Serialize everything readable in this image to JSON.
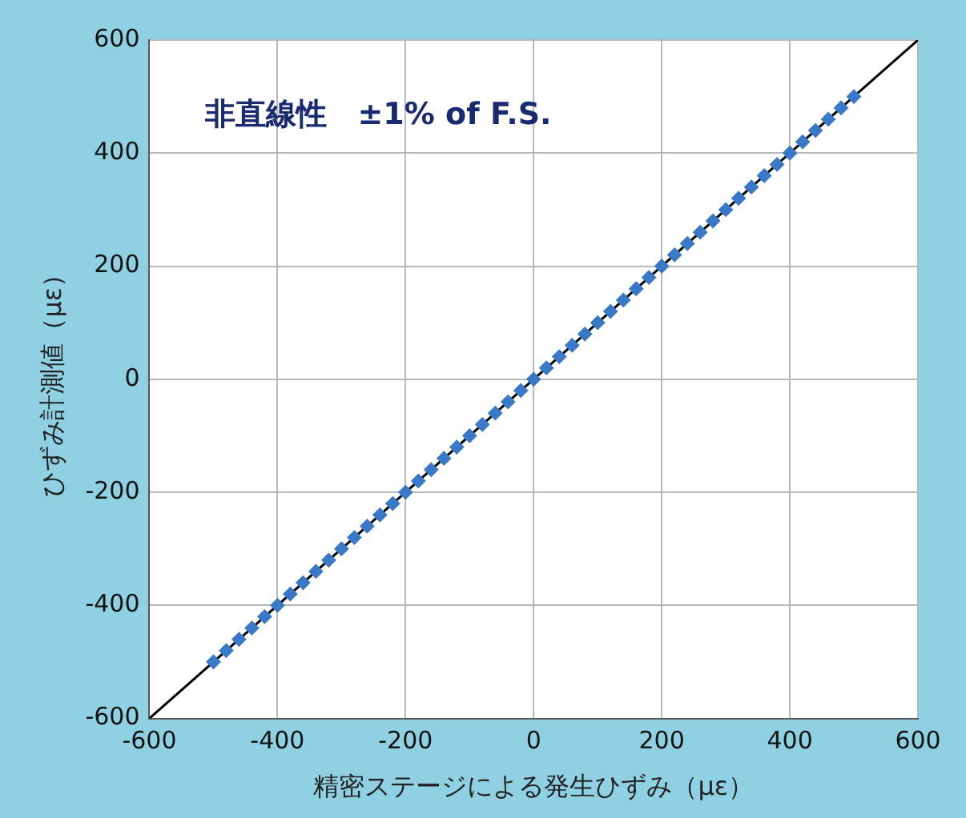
{
  "chart_data": {
    "type": "scatter",
    "xlabel": "精密ステージによる発生ひずみ（με）",
    "ylabel": "ひずみ計測値（με）",
    "annotations": [
      "非直線性　±1% of F.S."
    ],
    "xlim": [
      -600,
      600
    ],
    "ylim": [
      -600,
      600
    ],
    "xticks": [
      -600,
      -400,
      -200,
      0,
      200,
      400,
      600
    ],
    "yticks": [
      -600,
      -400,
      -200,
      0,
      200,
      400,
      600
    ],
    "grid": true,
    "legend": false,
    "marker": "diamond",
    "series": [
      {
        "type": "line",
        "color": "#000000",
        "x": [
          -600,
          600
        ],
        "values": [
          -600,
          600
        ],
        "marker": "none"
      },
      {
        "color": "#3a78c8",
        "x": [
          -500,
          -480,
          -460,
          -440,
          -420,
          -400,
          -380,
          -360,
          -340,
          -320,
          -300,
          -280,
          -260,
          -240,
          -220,
          -200,
          -180,
          -160,
          -140,
          -120,
          -100,
          -80,
          -60,
          -40,
          -20,
          0,
          20,
          40,
          60,
          80,
          100,
          120,
          140,
          160,
          180,
          200,
          220,
          240,
          260,
          280,
          300,
          320,
          340,
          360,
          380,
          400,
          420,
          440,
          460,
          480,
          500
        ],
        "values": [
          -500,
          -480,
          -460,
          -440,
          -420,
          -400,
          -380,
          -360,
          -340,
          -320,
          -300,
          -280,
          -260,
          -240,
          -220,
          -200,
          -180,
          -160,
          -140,
          -120,
          -100,
          -80,
          -60,
          -40,
          -20,
          0,
          20,
          40,
          60,
          80,
          100,
          120,
          140,
          160,
          180,
          200,
          220,
          240,
          260,
          280,
          300,
          320,
          340,
          360,
          380,
          400,
          420,
          440,
          460,
          480,
          500
        ]
      }
    ]
  }
}
